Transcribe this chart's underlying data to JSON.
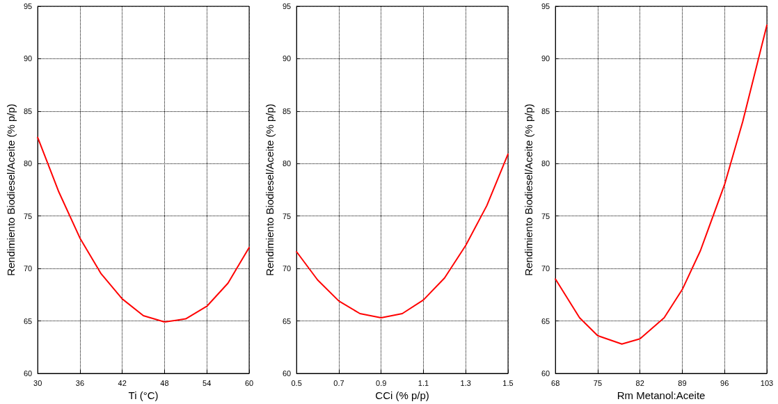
{
  "chart_data": [
    {
      "type": "line",
      "xlabel": "Ti (°C)",
      "ylabel": "Rendimiento Biodiesel/Aceite (% p/p)",
      "xlim": [
        30,
        60
      ],
      "xticks": [
        30,
        36,
        42,
        48,
        54,
        60
      ],
      "ylim": [
        60,
        95
      ],
      "yticks": [
        60,
        65,
        70,
        75,
        80,
        85,
        90,
        95
      ],
      "grid": true,
      "marker": "none",
      "line_style": "solid",
      "series": [
        {
          "color": "#ff0000",
          "x": [
            30,
            33,
            36,
            39,
            42,
            45,
            48,
            51,
            54,
            57,
            60
          ],
          "values": [
            82.5,
            77.3,
            72.9,
            69.5,
            67.1,
            65.5,
            64.9,
            65.2,
            66.4,
            68.6,
            72.0
          ]
        }
      ]
    },
    {
      "type": "line",
      "xlabel": "CCi (% p/p)",
      "ylabel": "Rendimiento Biodiesel/Aceite (% p/p)",
      "xlim": [
        0.5,
        1.5
      ],
      "xticks": [
        0.5,
        0.7,
        0.9,
        1.1,
        1.3,
        1.5
      ],
      "ylim": [
        60,
        95
      ],
      "yticks": [
        60,
        65,
        70,
        75,
        80,
        85,
        90,
        95
      ],
      "grid": true,
      "marker": "none",
      "line_style": "solid",
      "series": [
        {
          "color": "#ff0000",
          "x": [
            0.5,
            0.6,
            0.7,
            0.8,
            0.9,
            1.0,
            1.1,
            1.2,
            1.3,
            1.4,
            1.5
          ],
          "values": [
            71.6,
            68.9,
            66.9,
            65.7,
            65.3,
            65.7,
            67.0,
            69.1,
            72.2,
            76.0,
            80.9
          ]
        }
      ]
    },
    {
      "type": "line",
      "xlabel": "Rm Metanol:Aceite",
      "ylabel": "Rendimiento Biodiesel/Aceite (% p/p)",
      "xlim": [
        68,
        103
      ],
      "xticks": [
        68,
        75,
        82,
        89,
        96,
        103
      ],
      "ylim": [
        60,
        95
      ],
      "yticks": [
        60,
        65,
        70,
        75,
        80,
        85,
        90,
        95
      ],
      "grid": true,
      "marker": "none",
      "line_style": "solid",
      "series": [
        {
          "color": "#ff0000",
          "x": [
            68,
            72,
            75,
            79,
            82,
            86,
            89,
            92,
            96,
            99,
            103
          ],
          "values": [
            69.0,
            65.3,
            63.6,
            62.8,
            63.3,
            65.3,
            68.0,
            71.7,
            78.0,
            84.0,
            93.2
          ]
        }
      ]
    }
  ]
}
